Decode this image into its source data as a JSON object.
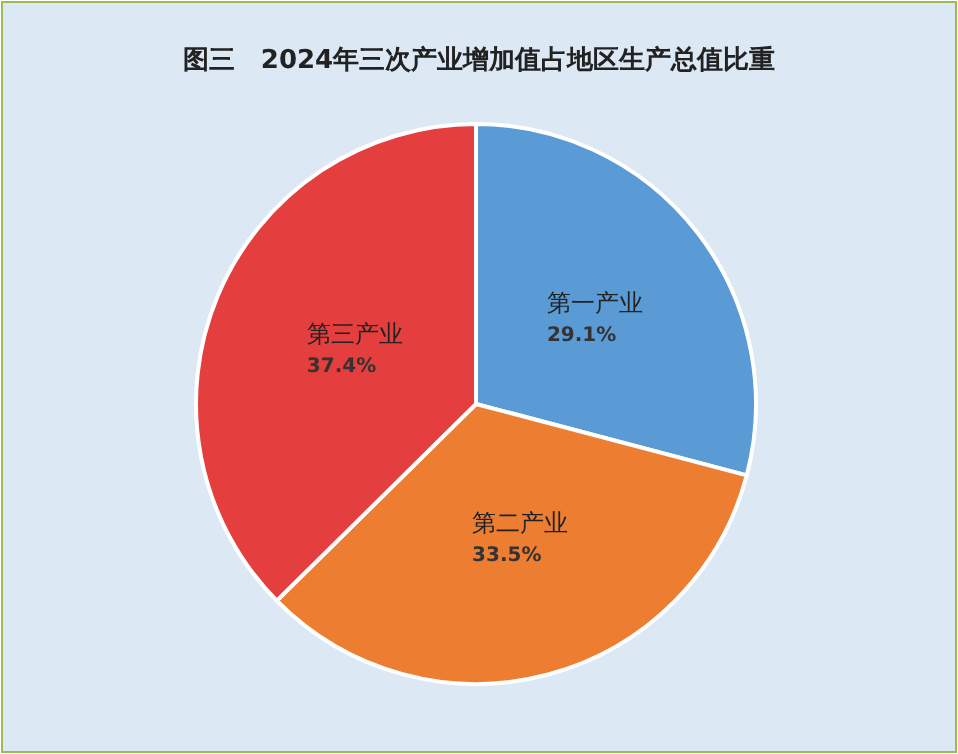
{
  "chart_data": {
    "type": "pie",
    "title": "图三　2024年三次产业增加值占地区生产总值比重",
    "categories": [
      "第一产业",
      "第二产业",
      "第三产业"
    ],
    "values": [
      29.1,
      33.5,
      37.4
    ],
    "colors": [
      "#5b9bd5",
      "#ed7d31",
      "#e53e3e"
    ],
    "value_labels": [
      "29.1%",
      "33.5%",
      "37.4%"
    ]
  }
}
